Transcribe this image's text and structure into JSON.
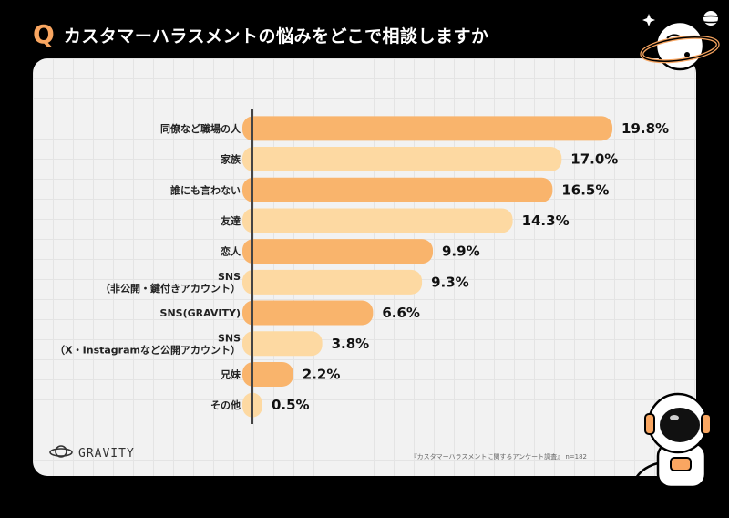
{
  "header": {
    "badge": "Q",
    "title": "カスタマーハラスメントの悩みをどこで相談しますか"
  },
  "footer": {
    "logo_text": "GRAVITY",
    "source": "『カスタマーハラスメントに関するアンケート調査』 n=182"
  },
  "colors": {
    "accent": "#F9A661",
    "bar_dark": "#F9B46C",
    "bar_light": "#FDD9A2",
    "background": "#000000"
  },
  "icons": {
    "planet": "planet-icon",
    "astronaut": "astronaut-icon",
    "logo": "gravity-planet-logo-icon"
  },
  "chart_data": {
    "type": "bar",
    "orientation": "horizontal",
    "title": "カスタマーハラスメントの悩みをどこで相談しますか",
    "categories": [
      "同僚など職場の人",
      "家族",
      "誰にも言わない",
      "友達",
      "恋人",
      "SNS\n（非公開・鍵付きアカウント）",
      "SNS(GRAVITY)",
      "SNS\n（X・Instagramなど公開アカウント）",
      "兄妹",
      "その他"
    ],
    "values": [
      19.8,
      17.0,
      16.5,
      14.3,
      9.9,
      9.3,
      6.6,
      3.8,
      2.2,
      0.5
    ],
    "value_labels": [
      "19.8%",
      "17.0%",
      "16.5%",
      "14.3%",
      "9.9%",
      "9.3%",
      "6.6%",
      "3.8%",
      "2.2%",
      "0.5%"
    ],
    "unit": "%",
    "xlim": [
      0,
      20
    ],
    "grid": true,
    "legend": "none"
  }
}
